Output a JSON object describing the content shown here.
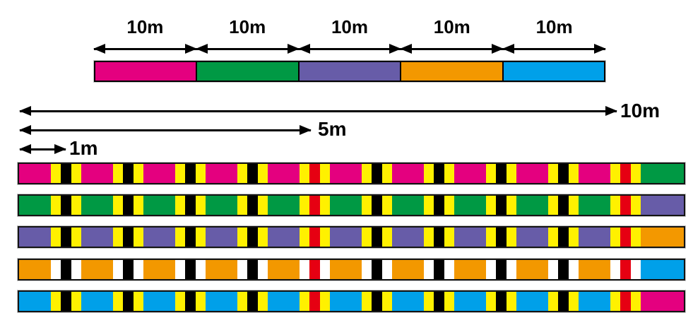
{
  "top_scale": {
    "segments": [
      {
        "label": "10m",
        "name": "pink",
        "color": "#E4007F"
      },
      {
        "label": "10m",
        "name": "green",
        "color": "#009944"
      },
      {
        "label": "10m",
        "name": "purple",
        "color": "#675CA8"
      },
      {
        "label": "10m",
        "name": "orange",
        "color": "#F39800"
      },
      {
        "label": "10m",
        "name": "blue",
        "color": "#00A0E9"
      }
    ]
  },
  "rulers": [
    {
      "label": "10m",
      "length_m": 10
    },
    {
      "label": "5m",
      "length_m": 5
    },
    {
      "label": "1m",
      "length_m": 1
    }
  ],
  "tick_pattern": {
    "interval_m": 1,
    "marks_per_section": 10,
    "black_mark_color": "#000000",
    "red_mark_color": "#E60012",
    "red_mark_meters": [
      5,
      10
    ]
  },
  "lines": [
    {
      "name": "pink",
      "base_color": "#E4007F",
      "tick_color": "#FFF100",
      "next_section_color": "#009944"
    },
    {
      "name": "green",
      "base_color": "#009944",
      "tick_color": "#FFF100",
      "next_section_color": "#675CA8"
    },
    {
      "name": "purple",
      "base_color": "#675CA8",
      "tick_color": "#FFF100",
      "next_section_color": "#F39800"
    },
    {
      "name": "orange",
      "base_color": "#F39800",
      "tick_color": "#FFFFFF",
      "next_section_color": "#00A0E9"
    },
    {
      "name": "blue",
      "base_color": "#00A0E9",
      "tick_color": "#FFF100",
      "next_section_color": "#E4007F"
    }
  ]
}
